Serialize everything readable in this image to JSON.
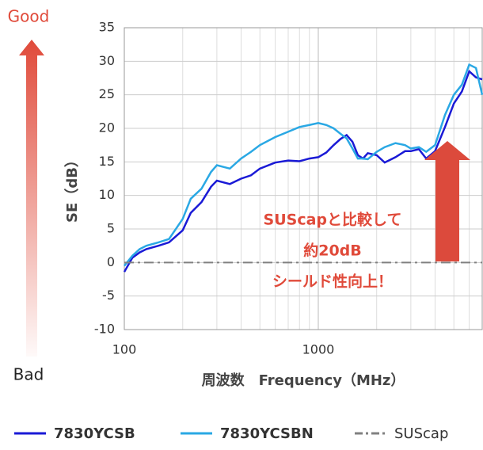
{
  "chart_data": {
    "type": "line",
    "log_x": true,
    "grid": true,
    "top_label": "Good",
    "bottom_label": "Bad",
    "ylabel": "SE（dB）",
    "xlabel": "周波数　Frequency（MHz）",
    "annotation": [
      "SUScapと比較して",
      "約20dB",
      "シールド性向上！"
    ],
    "xlim": [
      100,
      7000
    ],
    "xticks": [
      100,
      1000
    ],
    "ylim": [
      -10,
      35
    ],
    "yticks": [
      -10,
      -5,
      0,
      5,
      10,
      15,
      20,
      25,
      30,
      35
    ],
    "x": [
      100,
      110,
      120,
      130,
      150,
      170,
      200,
      220,
      250,
      280,
      300,
      350,
      400,
      450,
      500,
      600,
      700,
      800,
      900,
      1000,
      1100,
      1200,
      1300,
      1400,
      1500,
      1600,
      1700,
      1800,
      2000,
      2200,
      2500,
      2800,
      3000,
      3300,
      3600,
      4000,
      4500,
      5000,
      5500,
      6000,
      6500,
      7000
    ],
    "series": [
      {
        "name": "7830YCSB",
        "color": "#1a1ad6",
        "style": "solid",
        "values": [
          -1.4,
          0.7,
          1.5,
          2,
          2.5,
          3,
          4.8,
          7.4,
          9,
          11.3,
          12.2,
          11.7,
          12.5,
          13,
          14,
          14.9,
          15.2,
          15.1,
          15.5,
          15.7,
          16.4,
          17.5,
          18.4,
          19,
          18,
          16,
          15.5,
          16.3,
          16,
          14.9,
          15.7,
          16.6,
          16.6,
          16.9,
          15.5,
          16.6,
          20.2,
          23.7,
          25.5,
          28.5,
          27.6,
          27.3
        ]
      },
      {
        "name": "7830YCSBN",
        "color": "#2aa8e4",
        "style": "solid",
        "values": [
          -0.5,
          1,
          2,
          2.5,
          3,
          3.5,
          6.5,
          9.5,
          11,
          13.5,
          14.5,
          14,
          15.5,
          16.5,
          17.5,
          18.7,
          19.5,
          20.2,
          20.5,
          20.8,
          20.5,
          20,
          19.2,
          18.5,
          17,
          15.5,
          15.5,
          15.4,
          16.5,
          17.2,
          17.8,
          17.5,
          17,
          17.2,
          16.5,
          17.5,
          22,
          25,
          26.5,
          29.5,
          29,
          25
        ]
      },
      {
        "name": "SUScap",
        "color": "#808080",
        "style": "dashdot",
        "values": [
          0,
          0,
          0,
          0,
          0,
          0,
          0,
          0,
          0,
          0,
          0,
          0,
          0,
          0,
          0,
          0,
          0,
          0,
          0,
          0,
          0,
          0,
          0,
          0,
          0,
          0,
          0,
          0,
          0,
          0,
          0,
          0,
          0,
          0,
          0,
          0,
          0,
          0,
          0,
          0,
          0,
          0
        ]
      }
    ]
  }
}
